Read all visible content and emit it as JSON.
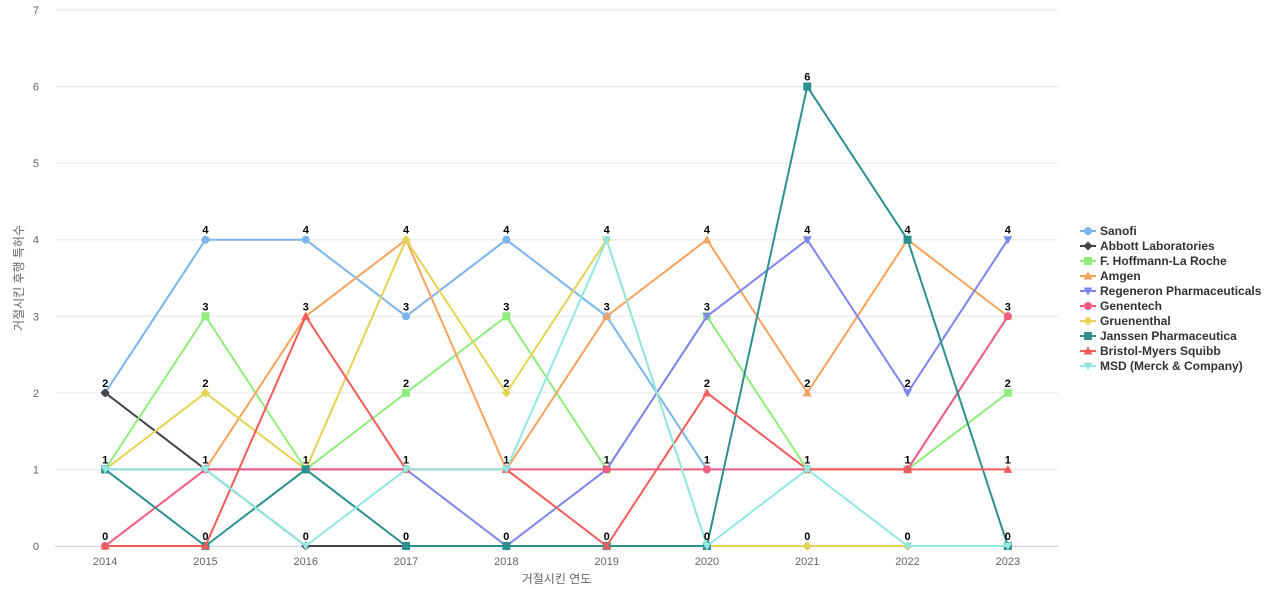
{
  "chart_data": {
    "type": "line",
    "title": "",
    "xlabel": "거절시킨 연도",
    "ylabel": "거절시킨 후행 특허수",
    "ylim": [
      0,
      7
    ],
    "yticks": [
      0,
      1,
      2,
      3,
      4,
      5,
      6,
      7
    ],
    "grid": true,
    "legend_position": "right",
    "categories": [
      "2014",
      "2015",
      "2016",
      "2017",
      "2018",
      "2019",
      "2020",
      "2021",
      "2022",
      "2023"
    ],
    "series": [
      {
        "name": "Sanofi",
        "color": "#7cb5ec",
        "marker": "circle",
        "values": [
          2,
          4,
          4,
          3,
          4,
          3,
          1,
          1,
          1,
          3
        ]
      },
      {
        "name": "Abbott Laboratories",
        "color": "#434348",
        "marker": "diamond",
        "values": [
          2,
          1,
          0,
          0,
          0,
          0,
          0,
          0,
          0,
          0
        ]
      },
      {
        "name": "F. Hoffmann-La Roche",
        "color": "#90ed7d",
        "marker": "square",
        "values": [
          1,
          3,
          1,
          2,
          3,
          1,
          3,
          1,
          1,
          2
        ]
      },
      {
        "name": "Amgen",
        "color": "#f7a35c",
        "marker": "triangle",
        "values": [
          1,
          1,
          3,
          4,
          1,
          3,
          4,
          2,
          4,
          3
        ]
      },
      {
        "name": "Regeneron Pharmaceuticals",
        "color": "#8085e9",
        "marker": "triangle-down",
        "values": [
          1,
          1,
          1,
          1,
          0,
          1,
          3,
          4,
          2,
          4
        ]
      },
      {
        "name": "Genentech",
        "color": "#f15c80",
        "marker": "circle",
        "values": [
          0,
          1,
          1,
          1,
          1,
          1,
          1,
          1,
          1,
          3
        ]
      },
      {
        "name": "Gruenenthal",
        "color": "#e4d354",
        "marker": "diamond",
        "values": [
          1,
          2,
          1,
          4,
          2,
          4,
          0,
          0,
          0,
          0
        ]
      },
      {
        "name": "Janssen Pharmaceutica",
        "color": "#2b908f",
        "marker": "square",
        "values": [
          1,
          0,
          1,
          0,
          0,
          0,
          0,
          6,
          4,
          0
        ]
      },
      {
        "name": "Bristol-Myers Squibb",
        "color": "#f45b5b",
        "marker": "triangle",
        "values": [
          0,
          0,
          3,
          1,
          1,
          0,
          2,
          1,
          1,
          1
        ]
      },
      {
        "name": "MSD (Merck & Company)",
        "color": "#91e8e1",
        "marker": "triangle-down",
        "values": [
          1,
          1,
          0,
          1,
          1,
          4,
          0,
          1,
          0,
          0
        ]
      }
    ],
    "data_labels": [
      {
        "x": "2014",
        "y": 2,
        "text": "2"
      },
      {
        "x": "2014",
        "y": 1,
        "text": "1"
      },
      {
        "x": "2014",
        "y": 0,
        "text": "0"
      },
      {
        "x": "2015",
        "y": 4,
        "text": "4"
      },
      {
        "x": "2015",
        "y": 3,
        "text": "3"
      },
      {
        "x": "2015",
        "y": 2,
        "text": "2"
      },
      {
        "x": "2015",
        "y": 1,
        "text": "1"
      },
      {
        "x": "2015",
        "y": 0,
        "text": "0"
      },
      {
        "x": "2016",
        "y": 4,
        "text": "4"
      },
      {
        "x": "2016",
        "y": 3,
        "text": "3"
      },
      {
        "x": "2016",
        "y": 1,
        "text": "1"
      },
      {
        "x": "2016",
        "y": 0,
        "text": "0"
      },
      {
        "x": "2017",
        "y": 4,
        "text": "4"
      },
      {
        "x": "2017",
        "y": 3,
        "text": "3"
      },
      {
        "x": "2017",
        "y": 2,
        "text": "2"
      },
      {
        "x": "2017",
        "y": 1,
        "text": "1"
      },
      {
        "x": "2017",
        "y": 0,
        "text": "0"
      },
      {
        "x": "2018",
        "y": 4,
        "text": "4"
      },
      {
        "x": "2018",
        "y": 3,
        "text": "3"
      },
      {
        "x": "2018",
        "y": 2,
        "text": "2"
      },
      {
        "x": "2018",
        "y": 1,
        "text": "1"
      },
      {
        "x": "2018",
        "y": 0,
        "text": "0"
      },
      {
        "x": "2019",
        "y": 4,
        "text": "4"
      },
      {
        "x": "2019",
        "y": 3,
        "text": "3"
      },
      {
        "x": "2019",
        "y": 1,
        "text": "1"
      },
      {
        "x": "2019",
        "y": 0,
        "text": "0"
      },
      {
        "x": "2020",
        "y": 4,
        "text": "4"
      },
      {
        "x": "2020",
        "y": 3,
        "text": "3"
      },
      {
        "x": "2020",
        "y": 2,
        "text": "2"
      },
      {
        "x": "2020",
        "y": 1,
        "text": "1"
      },
      {
        "x": "2020",
        "y": 0,
        "text": "0"
      },
      {
        "x": "2021",
        "y": 6,
        "text": "6"
      },
      {
        "x": "2021",
        "y": 4,
        "text": "4"
      },
      {
        "x": "2021",
        "y": 2,
        "text": "2"
      },
      {
        "x": "2021",
        "y": 1,
        "text": "1"
      },
      {
        "x": "2021",
        "y": 0,
        "text": "0"
      },
      {
        "x": "2022",
        "y": 4,
        "text": "4"
      },
      {
        "x": "2022",
        "y": 2,
        "text": "2"
      },
      {
        "x": "2022",
        "y": 1,
        "text": "1"
      },
      {
        "x": "2022",
        "y": 0,
        "text": "0"
      },
      {
        "x": "2023",
        "y": 4,
        "text": "4"
      },
      {
        "x": "2023",
        "y": 3,
        "text": "3"
      },
      {
        "x": "2023",
        "y": 2,
        "text": "2"
      },
      {
        "x": "2023",
        "y": 1,
        "text": "1"
      },
      {
        "x": "2023",
        "y": 0,
        "text": "0"
      }
    ]
  }
}
